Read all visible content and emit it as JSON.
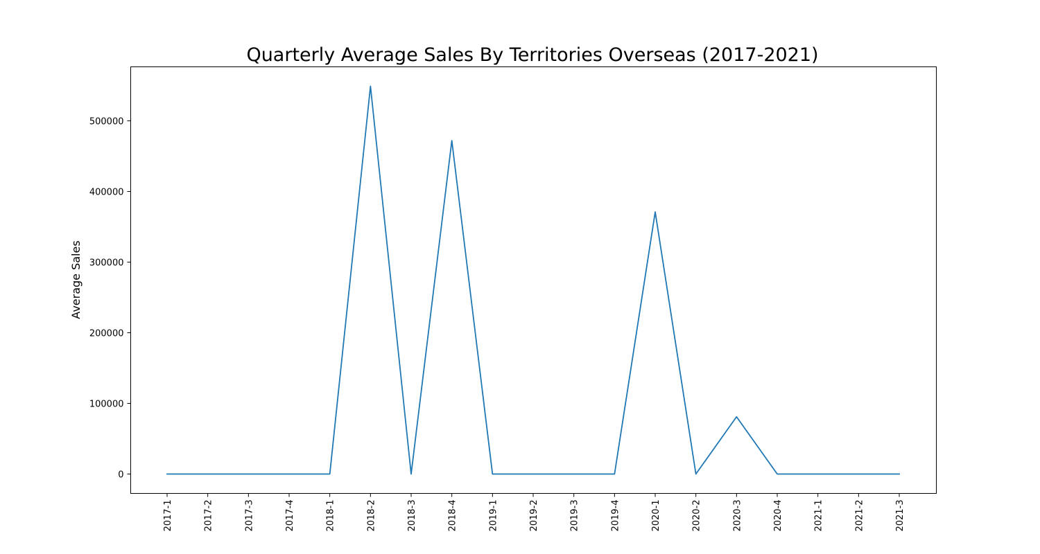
{
  "chart_data": {
    "type": "line",
    "title": "Quarterly Average Sales By Territories Overseas (2017-2021)",
    "xlabel": "",
    "ylabel": "Average Sales",
    "categories": [
      "2017-1",
      "2017-2",
      "2017-3",
      "2017-4",
      "2018-1",
      "2018-2",
      "2018-3",
      "2018-4",
      "2019-1",
      "2019-2",
      "2019-3",
      "2019-4",
      "2020-1",
      "2020-2",
      "2020-3",
      "2020-4",
      "2021-1",
      "2021-2",
      "2021-3"
    ],
    "series": [
      {
        "values": [
          0,
          0,
          0,
          0,
          0,
          549000,
          0,
          472000,
          0,
          0,
          0,
          0,
          371000,
          0,
          81000,
          0,
          0,
          0,
          0
        ]
      }
    ],
    "yticks": [
      0,
      100000,
      200000,
      300000,
      400000,
      500000
    ],
    "ytick_labels": [
      "0",
      "100000",
      "200000",
      "300000",
      "400000",
      "500000"
    ],
    "ylim": [
      -27450,
      576450
    ],
    "grid": false,
    "legend": "none",
    "colors": {
      "line": "#1f77b4",
      "axes": "#000000",
      "background": "#ffffff"
    }
  }
}
